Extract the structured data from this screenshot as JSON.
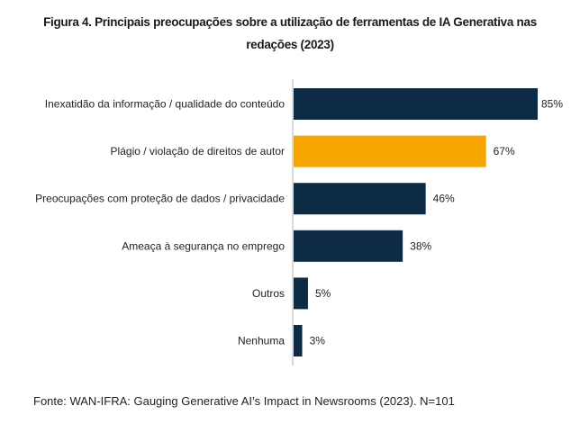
{
  "chart_data": {
    "type": "bar",
    "orientation": "horizontal",
    "title_lines": [
      "Figura 4. Principais preocupações sobre a utilização de ferramentas de IA Generativa nas",
      "redações (2023)"
    ],
    "categories": [
      "Inexatidão da informação / qualidade do conteúdo",
      "Plágio / violação de direitos de autor",
      "Preocupações com proteção de dados / privacidade",
      "Ameaça à segurança no emprego",
      "Outros",
      "Nenhuma"
    ],
    "values": [
      85,
      67,
      46,
      38,
      5,
      3
    ],
    "data_labels": [
      "85%",
      "67%",
      "46%",
      "38%",
      "5%",
      "3%"
    ],
    "unit": "%",
    "xlim": [
      0,
      85
    ],
    "grid": false,
    "colors": {
      "default": "#0e2b45",
      "highlight": "#f7a600",
      "axis": "#d9d9d9"
    },
    "highlight_index": 1,
    "source": "Fonte: WAN-IFRA: Gauging Generative AI’s Impact in Newsrooms (2023). N=101"
  }
}
